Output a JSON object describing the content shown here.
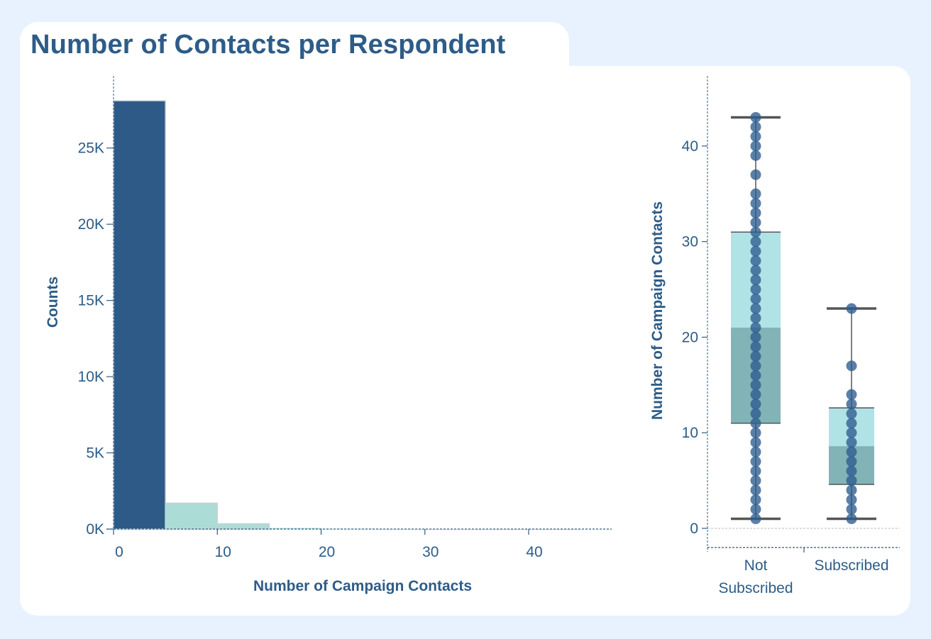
{
  "title": "Number of Contacts per Respondent",
  "colors": {
    "background": "#e8f2fe",
    "text": "#2d5c88",
    "bar_primary": "#2d5a86",
    "bar_secondary": "#acdcd6",
    "box_upper": "#b0e3e6",
    "box_lower": "#82b3b6",
    "dots": "#2d5c90",
    "whisker": "#555555"
  },
  "chart_data": [
    {
      "type": "bar",
      "chart_kind": "histogram",
      "xlabel": "Number of Campaign Contacts",
      "ylabel": "Counts",
      "bins": [
        {
          "x0": 0,
          "x1": 5,
          "value": 28100
        },
        {
          "x0": 5,
          "x1": 10,
          "value": 1700
        },
        {
          "x0": 10,
          "x1": 15,
          "value": 350
        },
        {
          "x0": 15,
          "x1": 20,
          "value": 70
        },
        {
          "x0": 20,
          "x1": 25,
          "value": 25
        },
        {
          "x0": 25,
          "x1": 30,
          "value": 12
        },
        {
          "x0": 30,
          "x1": 35,
          "value": 8
        },
        {
          "x0": 35,
          "x1": 40,
          "value": 4
        },
        {
          "x0": 40,
          "x1": 45,
          "value": 3
        }
      ],
      "xlim": [
        0,
        48
      ],
      "ylim": [
        0,
        29500
      ],
      "x_ticks": [
        0,
        10,
        20,
        30,
        40
      ],
      "y_ticks": [
        0,
        5000,
        10000,
        15000,
        20000,
        25000
      ],
      "y_tick_labels": [
        "0K",
        "5K",
        "10K",
        "15K",
        "20K",
        "25K"
      ]
    },
    {
      "type": "box",
      "ylabel": "Number of Campaign Contacts",
      "categories": [
        "Not Subscribed",
        "Subscribed"
      ],
      "category_label_lines": [
        [
          "Not",
          "Subscribed"
        ],
        [
          "Subscribed"
        ]
      ],
      "ylim": [
        0,
        45
      ],
      "y_ticks": [
        0,
        10,
        20,
        30,
        40
      ],
      "boxes": [
        {
          "min": 1,
          "q1": 11,
          "median": 21,
          "q3": 31,
          "max": 43
        },
        {
          "min": 1,
          "q1": 4.6,
          "median": 8.6,
          "q3": 12.6,
          "max": 23
        }
      ],
      "points": [
        [
          1,
          2,
          3,
          4,
          5,
          6,
          7,
          8,
          9,
          10,
          11,
          12,
          13,
          14,
          15,
          16,
          17,
          18,
          19,
          20,
          21,
          22,
          23,
          24,
          25,
          26,
          27,
          28,
          29,
          30,
          31,
          32,
          33,
          34,
          35,
          37,
          39,
          40,
          41,
          42,
          43
        ],
        [
          1,
          2,
          3,
          4,
          5,
          6,
          7,
          8,
          9,
          10,
          11,
          12,
          13,
          14,
          17,
          23
        ]
      ]
    }
  ]
}
